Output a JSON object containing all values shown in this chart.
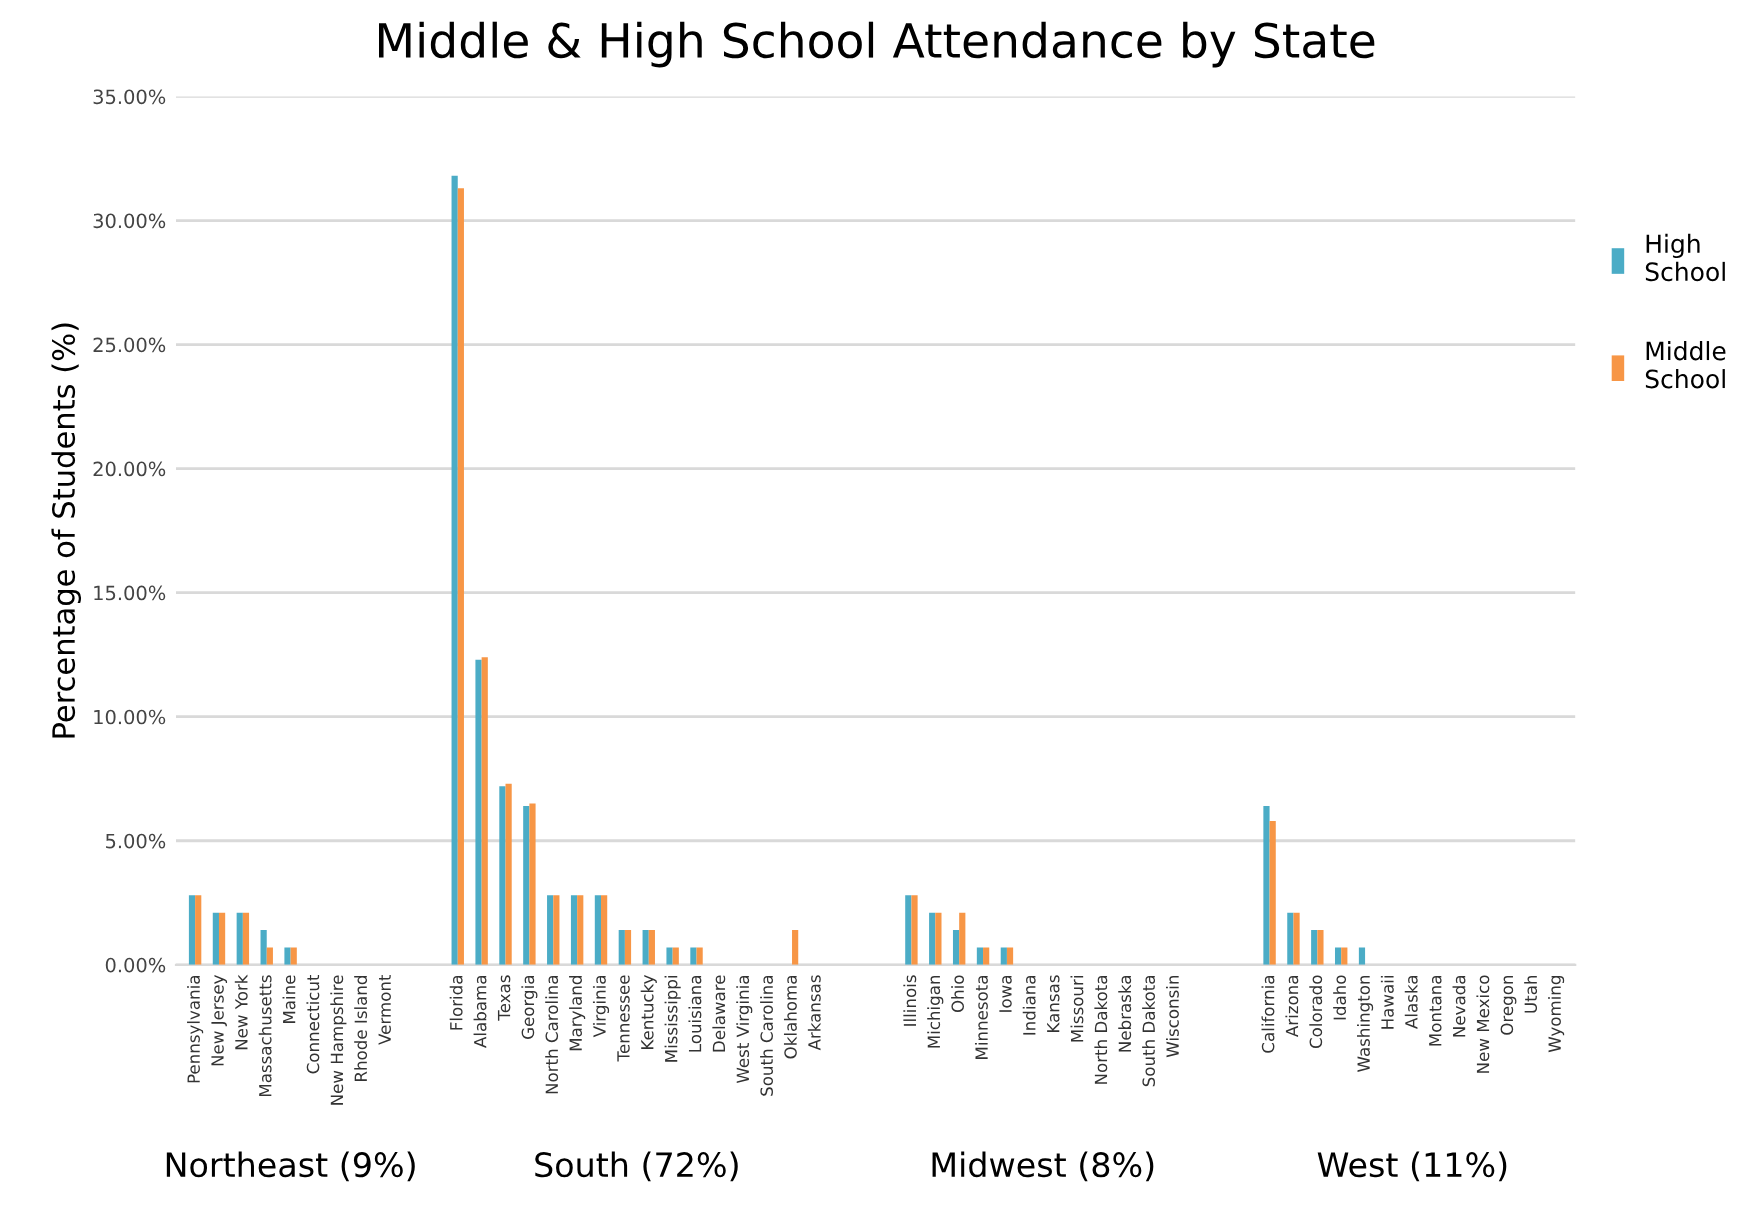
{
  "chart_data": {
    "type": "bar",
    "title": "Middle & High School Attendance by State",
    "ylabel": "Percentage of Students (%)",
    "categories": [
      "Pennsylvania",
      "New Jersey",
      "New York",
      "Massachusetts",
      "Maine",
      "Connecticut",
      "New Hampshire",
      "Rhode Island",
      "Vermont",
      null,
      null,
      "Florida",
      "Alabama",
      "Texas",
      "Georgia",
      "North Carolina",
      "Maryland",
      "Virginia",
      "Tennessee",
      "Kentucky",
      "Mississippi",
      "Louisiana",
      "Delaware",
      "West Virginia",
      "South Carolina",
      "Oklahoma",
      "Arkansas",
      null,
      null,
      null,
      "Illinois",
      "Michigan",
      "Ohio",
      "Minnesota",
      "Iowa",
      "Indiana",
      "Kansas",
      "Missouri",
      "North Dakota",
      "Nebraska",
      "South Dakota",
      "Wisconsin",
      null,
      null,
      null,
      "California",
      "Arizona",
      "Colorado",
      "Idaho",
      "Washington",
      "Hawaii",
      "Alaska",
      "Montana",
      "Nevada",
      "New Mexico",
      "Oregon",
      "Utah",
      "Wyoming"
    ],
    "series": [
      {
        "name": "High School",
        "color": "#4bacc6",
        "values": [
          2.8,
          2.1,
          2.1,
          1.4,
          0.7,
          0,
          0,
          0,
          0,
          null,
          null,
          31.8,
          12.3,
          7.2,
          6.4,
          2.8,
          2.8,
          2.8,
          1.4,
          1.4,
          0.7,
          0.7,
          0,
          0,
          0,
          0,
          0,
          null,
          null,
          null,
          2.8,
          2.1,
          1.4,
          0.7,
          0.7,
          0,
          0,
          0,
          0,
          0,
          0,
          0,
          null,
          null,
          null,
          6.4,
          2.1,
          1.4,
          0.7,
          0.7,
          0,
          0,
          0,
          0,
          0,
          0,
          0,
          0
        ]
      },
      {
        "name": "Middle School",
        "color": "#f79646",
        "values": [
          2.8,
          2.1,
          2.1,
          0.7,
          0.7,
          0,
          0,
          0,
          0,
          null,
          null,
          31.3,
          12.4,
          7.3,
          6.5,
          2.8,
          2.8,
          2.8,
          1.4,
          1.4,
          0.7,
          0.7,
          0,
          0,
          0,
          1.4,
          0,
          null,
          null,
          null,
          2.8,
          2.1,
          2.1,
          0.7,
          0.7,
          0,
          0,
          0,
          0,
          0,
          0,
          0,
          null,
          null,
          null,
          5.8,
          2.1,
          1.4,
          0.7,
          0,
          0,
          0,
          0,
          0,
          0,
          0,
          0,
          0
        ]
      }
    ],
    "ylim": [
      0,
      35
    ],
    "yticks": [
      {
        "value": 0,
        "label": "0.00%"
      },
      {
        "value": 5,
        "label": "5.00%"
      },
      {
        "value": 10,
        "label": "10.00%"
      },
      {
        "value": 15,
        "label": "15.00%"
      },
      {
        "value": 20,
        "label": "20.00%"
      },
      {
        "value": 25,
        "label": "25.00%"
      },
      {
        "value": 30,
        "label": "30.00%"
      },
      {
        "value": 35,
        "label": "35.00%"
      }
    ],
    "grid": "y",
    "legend": "right",
    "annotations": [
      "Northeast (9%)",
      "South (72%)",
      "Midwest (8%)",
      "West (11%)"
    ]
  }
}
